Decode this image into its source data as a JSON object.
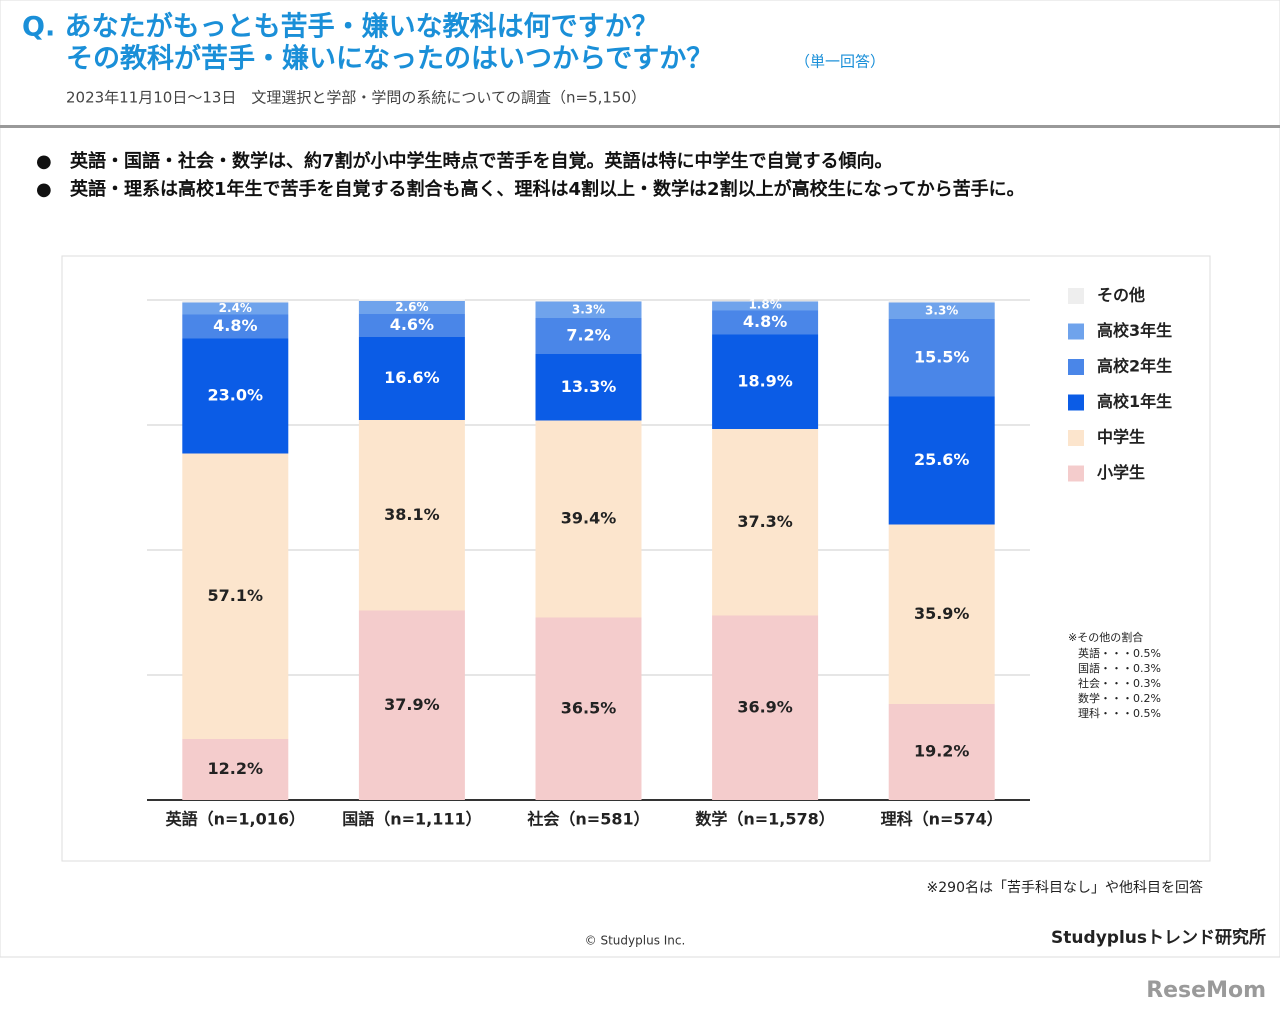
{
  "header": {
    "title_line1": "Q. あなたがもっとも苦手・嫌いな教科は何ですか？",
    "title_line2": "その教科が苦手・嫌いになったのはいつからですか？",
    "answer_type": "（単一回答）",
    "survey": "2023年11月10日～13日　文理選択と学部・学問の系統についての調査（n=5,150）"
  },
  "bullets": [
    "英語・国語・社会・数学は、約7割が小中学生時点で苦手を自覚。英語は特に中学生で自覚する傾向。",
    "英語・理系は高校1年生で苦手を自覚する割合も高く、理科は4割以上・数学は2割以上が高校生になってから苦手に。"
  ],
  "chart_data": {
    "type": "stacked_bar",
    "categories": [
      "英語（n=1,016）",
      "国語（n=1,111）",
      "社会（n=581）",
      "数学（n=1,578）",
      "理科（n=574）"
    ],
    "series": [
      {
        "name": "小学生",
        "color": "#f4cccc",
        "values": [
          12.2,
          37.9,
          36.5,
          36.9,
          19.2
        ],
        "value_labels": [
          "12.2%",
          "37.9%",
          "36.5%",
          "36.9%",
          "19.2%"
        ]
      },
      {
        "name": "中学生",
        "color": "#fce5cd",
        "values": [
          57.1,
          38.1,
          39.4,
          37.3,
          35.9
        ],
        "value_labels": [
          "57.1%",
          "38.1%",
          "39.4%",
          "37.3%",
          "35.9%"
        ]
      },
      {
        "name": "高校1年生",
        "color": "#0b5ce6",
        "values": [
          23.0,
          16.6,
          13.3,
          18.9,
          25.6
        ],
        "value_labels": [
          "23.0%",
          "16.6%",
          "13.3%",
          "18.9%",
          "25.6%"
        ]
      },
      {
        "name": "高校2年生",
        "color": "#4a86e8",
        "values": [
          4.8,
          4.6,
          7.2,
          4.8,
          15.5
        ],
        "value_labels": [
          "4.8%",
          "4.6%",
          "7.2%",
          "4.8%",
          "15.5%"
        ]
      },
      {
        "name": "高校3年生",
        "color": "#6fa3ec",
        "values": [
          2.4,
          2.6,
          3.3,
          1.8,
          3.3
        ],
        "value_labels": [
          "2.4%",
          "2.6%",
          "3.3%",
          "1.8%",
          "3.3%"
        ]
      },
      {
        "name": "その他",
        "color": "#eeeeee",
        "values": [
          0.5,
          0.3,
          0.3,
          0.2,
          0.5
        ]
      }
    ],
    "ylim": [
      0,
      100
    ],
    "yticks": [
      0,
      25,
      50,
      75,
      100
    ],
    "grid": true,
    "legend": "right"
  },
  "notes": {
    "other_title": "※その他の割合",
    "other_lines": [
      "英語・・・0.5%",
      "国語・・・0.3%",
      "社会・・・0.3%",
      "数学・・・0.2%",
      "理科・・・0.5%"
    ],
    "footnote": "※290名は「苦手科目なし」や他科目を回答",
    "copyright": "© Studyplus Inc.",
    "brand": "Studyplusトレンド研究所",
    "logo": "ReseMom"
  }
}
